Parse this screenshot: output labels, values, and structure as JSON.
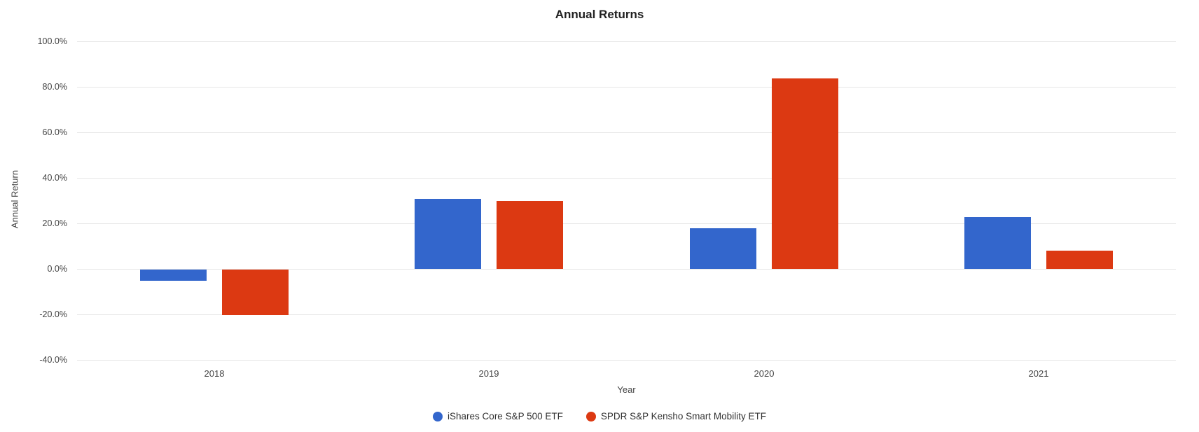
{
  "chart_data": {
    "type": "bar",
    "title": "Annual Returns",
    "xlabel": "Year",
    "ylabel": "Annual Return",
    "categories": [
      "2018",
      "2019",
      "2020",
      "2021"
    ],
    "series": [
      {
        "name": "iShares Core S&P 500 ETF",
        "color": "#3366CC",
        "values": [
          -4.9,
          30.8,
          17.9,
          22.7
        ]
      },
      {
        "name": "SPDR S&P Kensho Smart Mobility ETF",
        "color": "#DC3912",
        "values": [
          -20.0,
          30.0,
          83.8,
          8.0
        ]
      }
    ],
    "y_ticks": [
      {
        "label": "100.0%",
        "value": 100
      },
      {
        "label": "80.0%",
        "value": 80
      },
      {
        "label": "60.0%",
        "value": 60
      },
      {
        "label": "40.0%",
        "value": 40
      },
      {
        "label": "20.0%",
        "value": 20
      },
      {
        "label": "0.0%",
        "value": 0
      },
      {
        "label": "-20.0%",
        "value": -20
      },
      {
        "label": "-40.0%",
        "value": -40
      }
    ],
    "ylim": [
      -40,
      100
    ],
    "value_unit": "percent",
    "grid": true,
    "legend_position": "bottom",
    "colors": {
      "background": "#ffffff",
      "gridline": "#e6e6e6",
      "tick_text": "#444444",
      "title_text": "#212121",
      "legend_text": "#333333"
    }
  }
}
